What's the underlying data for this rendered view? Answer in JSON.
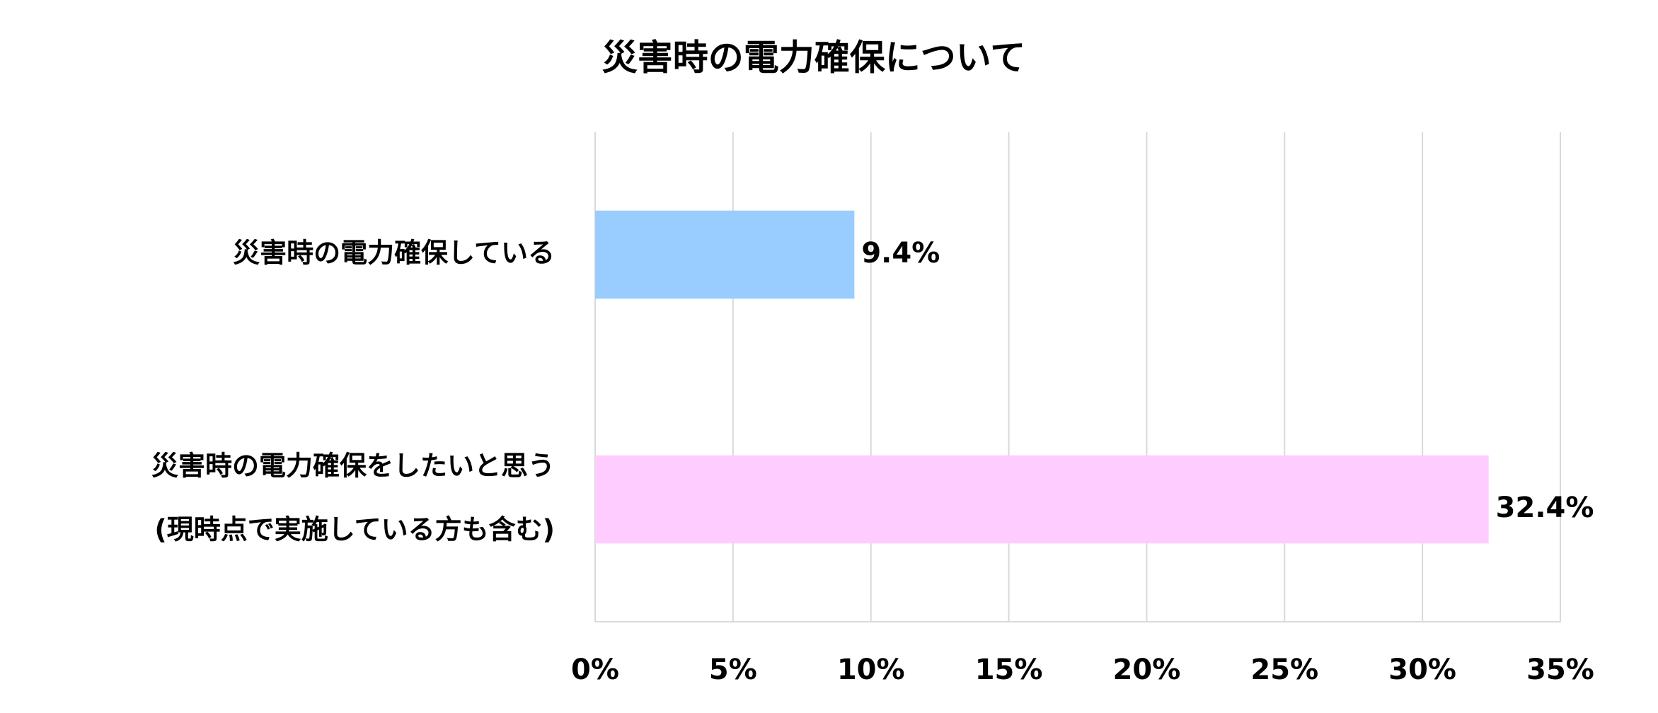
{
  "chart_data": {
    "type": "barh",
    "title": "災害時の電力確保について",
    "categories": [
      "災害時の電力確保している",
      [
        "災害時の電力確保をしたいと思う",
        "(現時点で実施している方も含む)"
      ]
    ],
    "values": [
      9.4,
      32.4
    ],
    "value_labels": [
      "9.4%",
      "32.4%"
    ],
    "colors": [
      "#99ccff",
      "#ffccff"
    ],
    "xlim": [
      0,
      35
    ],
    "xticks": [
      {
        "value": 0,
        "label": "0%"
      },
      {
        "value": 5,
        "label": "5%"
      },
      {
        "value": 10,
        "label": "10%"
      },
      {
        "value": 15,
        "label": "15%"
      },
      {
        "value": 20,
        "label": "20%"
      },
      {
        "value": 25,
        "label": "25%"
      },
      {
        "value": 30,
        "label": "30%"
      },
      {
        "value": 35,
        "label": "35%"
      }
    ],
    "grid": true
  }
}
